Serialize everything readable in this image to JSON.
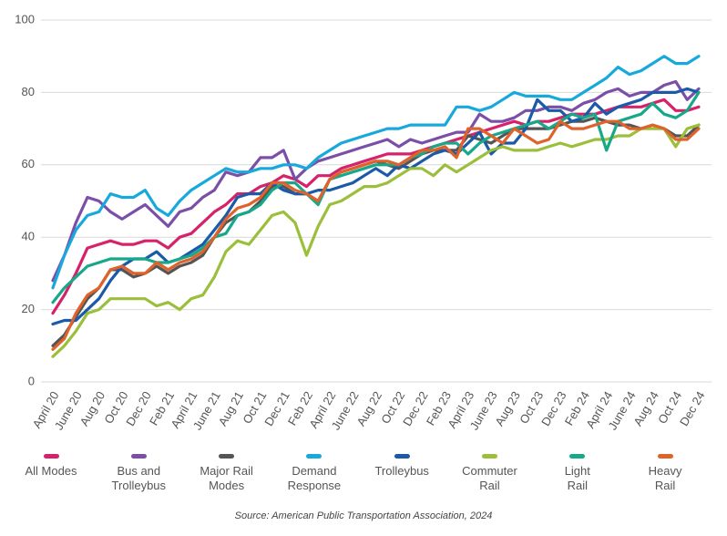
{
  "chart_data": {
    "type": "line",
    "source": "Source: American Public Transportation Association, 2024",
    "categories": [
      "April 20",
      null,
      "June 20",
      null,
      "Aug 20",
      null,
      "Oct 20",
      null,
      "Dec 20",
      null,
      "Feb 21",
      null,
      "April 21",
      null,
      "June 21",
      null,
      "Aug 21",
      null,
      "Oct 21",
      null,
      "Dec 21",
      null,
      "Feb 22",
      null,
      "April 22",
      null,
      "June 22",
      null,
      "Aug 22",
      null,
      "Oct 22",
      null,
      "Dec 22",
      null,
      "Feb 23",
      null,
      "April 23",
      null,
      "June 23",
      null,
      "Aug 23",
      null,
      "Oct 23",
      null,
      "Dec 23",
      null,
      "Feb 24",
      null,
      "April 24",
      null,
      "June 24",
      null,
      "Aug 24",
      null,
      "Oct 24",
      null,
      "Dec 24"
    ],
    "ylim": [
      0,
      100
    ],
    "yticks": [
      0,
      20,
      40,
      60,
      80,
      100
    ],
    "grid": true,
    "series": [
      {
        "name": "All Modes",
        "color": "#d6226a",
        "values": [
          19,
          24,
          30,
          37,
          38,
          39,
          38,
          38,
          39,
          39,
          37,
          40,
          41,
          44,
          47,
          49,
          52,
          52,
          54,
          55,
          57,
          56,
          54,
          57,
          57,
          59,
          60,
          61,
          62,
          63,
          63,
          63,
          64,
          65,
          66,
          67,
          68,
          69,
          70,
          71,
          72,
          71,
          72,
          72,
          73,
          74,
          74,
          74,
          75,
          76,
          76,
          76,
          77,
          78,
          75,
          75,
          76
        ]
      },
      {
        "name": "Bus and Trolleybus",
        "color": "#7b4fa8",
        "values": [
          28,
          35,
          44,
          51,
          50,
          47,
          45,
          47,
          49,
          46,
          43,
          47,
          48,
          51,
          53,
          58,
          57,
          58,
          62,
          62,
          64,
          56,
          59,
          61,
          62,
          63,
          64,
          65,
          66,
          67,
          65,
          67,
          66,
          67,
          68,
          69,
          69,
          74,
          72,
          72,
          73,
          75,
          75,
          76,
          76,
          75,
          77,
          78,
          80,
          81,
          79,
          80,
          80,
          82,
          83,
          78,
          81
        ]
      },
      {
        "name": "Major Rail Modes",
        "color": "#555555",
        "values": [
          10,
          13,
          18,
          23,
          26,
          31,
          31,
          29,
          30,
          32,
          30,
          32,
          33,
          35,
          40,
          44,
          46,
          47,
          50,
          54,
          54,
          52,
          52,
          50,
          56,
          58,
          59,
          60,
          61,
          60,
          59,
          61,
          63,
          64,
          64,
          64,
          68,
          67,
          66,
          68,
          70,
          70,
          70,
          70,
          71,
          72,
          72,
          73,
          72,
          71,
          71,
          70,
          71,
          70,
          68,
          68,
          71
        ]
      },
      {
        "name": "Demand Response",
        "color": "#18a9dc",
        "values": [
          26,
          35,
          42,
          46,
          47,
          52,
          51,
          51,
          53,
          48,
          46,
          50,
          53,
          55,
          57,
          59,
          58,
          58,
          59,
          59,
          60,
          60,
          59,
          62,
          64,
          66,
          67,
          68,
          69,
          70,
          70,
          71,
          71,
          71,
          71,
          76,
          76,
          75,
          76,
          78,
          80,
          79,
          79,
          79,
          78,
          78,
          80,
          82,
          84,
          87,
          85,
          86,
          88,
          90,
          88,
          88,
          90
        ]
      },
      {
        "name": "Trolleybus",
        "color": "#1a5aa8",
        "values": [
          16,
          17,
          17,
          20,
          23,
          28,
          32,
          34,
          34,
          36,
          33,
          34,
          36,
          38,
          42,
          46,
          51,
          52,
          52,
          55,
          53,
          52,
          52,
          53,
          53,
          54,
          55,
          57,
          59,
          57,
          60,
          59,
          61,
          63,
          64,
          63,
          66,
          69,
          63,
          66,
          66,
          70,
          78,
          75,
          75,
          72,
          73,
          77,
          74,
          76,
          77,
          78,
          80,
          80,
          80,
          81,
          80
        ]
      },
      {
        "name": "Commuter Rail",
        "color": "#9bbf3a",
        "values": [
          7,
          10,
          14,
          19,
          20,
          23,
          23,
          23,
          23,
          21,
          22,
          20,
          23,
          24,
          29,
          36,
          39,
          38,
          42,
          46,
          47,
          44,
          35,
          43,
          49,
          50,
          52,
          54,
          54,
          55,
          57,
          59,
          59,
          57,
          60,
          58,
          60,
          62,
          64,
          65,
          64,
          64,
          64,
          65,
          66,
          65,
          66,
          67,
          67,
          68,
          68,
          70,
          70,
          70,
          65,
          70,
          71
        ]
      },
      {
        "name": "Light Rail",
        "color": "#17a88a",
        "values": [
          22,
          26,
          29,
          32,
          33,
          34,
          34,
          34,
          34,
          33,
          33,
          34,
          35,
          37,
          40,
          41,
          46,
          47,
          49,
          53,
          55,
          55,
          52,
          49,
          56,
          57,
          58,
          59,
          60,
          60,
          60,
          62,
          63,
          65,
          66,
          66,
          63,
          66,
          68,
          69,
          70,
          71,
          72,
          70,
          72,
          74,
          73,
          74,
          64,
          72,
          73,
          74,
          77,
          74,
          73,
          75,
          80
        ]
      },
      {
        "name": "Heavy Rail",
        "color": "#e0622a",
        "values": [
          9,
          12,
          19,
          24,
          26,
          31,
          32,
          30,
          30,
          33,
          31,
          33,
          34,
          36,
          40,
          45,
          48,
          49,
          51,
          55,
          55,
          53,
          52,
          50,
          56,
          58,
          59,
          60,
          61,
          61,
          60,
          62,
          64,
          64,
          65,
          62,
          70,
          70,
          68,
          66,
          70,
          68,
          66,
          67,
          72,
          70,
          70,
          71,
          72,
          72,
          70,
          70,
          71,
          70,
          67,
          67,
          70
        ]
      }
    ]
  }
}
